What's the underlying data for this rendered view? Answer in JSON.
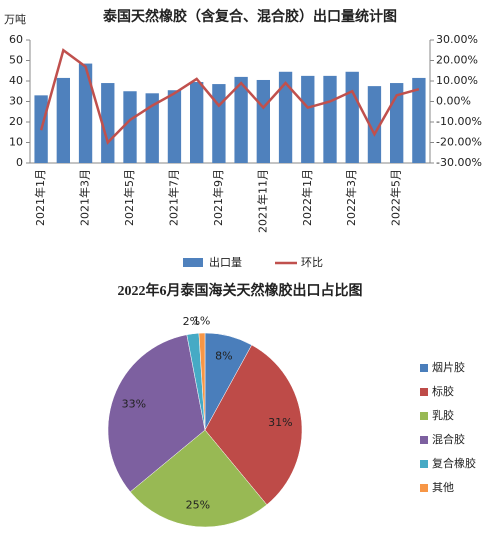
{
  "chart_data": [
    {
      "type": "bar",
      "title": "泰国天然橡胶（含复合、混合胶）出口量统计图",
      "y_label": "万吨",
      "categories": [
        "2021年1月",
        null,
        "2021年3月",
        null,
        "2021年5月",
        null,
        "2021年7月",
        null,
        "2021年9月",
        null,
        "2021年11月",
        null,
        "2022年1月",
        null,
        "2022年3月",
        null,
        "2022年5月",
        null
      ],
      "series": [
        {
          "name": "出口量",
          "type": "bar",
          "color": "#4f81bd",
          "values": [
            33,
            41.5,
            48.5,
            39,
            35,
            34,
            35.5,
            39.5,
            38.5,
            42,
            40.5,
            44.5,
            42.5,
            42.5,
            44.5,
            37.5,
            39,
            41.5
          ]
        },
        {
          "name": "环比",
          "type": "line",
          "axis": "y2",
          "color": "#c0504d",
          "values": [
            -14,
            25,
            17,
            -20,
            -9,
            -2,
            4,
            11,
            -2,
            9,
            -3,
            9,
            -3,
            0,
            5,
            -16,
            3,
            6
          ]
        }
      ],
      "ylim": [
        0,
        60
      ],
      "yticks": [
        0,
        10,
        20,
        30,
        40,
        50,
        60
      ],
      "y2lim": [
        -30,
        30
      ],
      "y2ticks": [
        {
          "value": -30,
          "label": "-30.00%"
        },
        {
          "value": -20,
          "label": "-20.00%"
        },
        {
          "value": -10,
          "label": "-10.00%"
        },
        {
          "value": 0,
          "label": "0.00%"
        },
        {
          "value": 10,
          "label": "10.00%"
        },
        {
          "value": 20,
          "label": "20.00%"
        },
        {
          "value": 30,
          "label": "30.00%"
        }
      ],
      "legend": "bottom"
    },
    {
      "type": "pie",
      "title": "2022年6月泰国海关天然橡胶出口占比图",
      "categories": [
        "烟片胶",
        "标胶",
        "乳胶",
        "混合胶",
        "复合橡胶",
        "其他"
      ],
      "values": [
        8,
        31,
        25,
        33,
        2,
        1
      ],
      "value_labels": [
        "8%",
        "31%",
        "25%",
        "33%",
        "2%",
        "1%"
      ],
      "colors": [
        "#4a7ebb",
        "#be4b48",
        "#98b954",
        "#7d60a0",
        "#46aac5",
        "#f79646"
      ],
      "legend": "right"
    }
  ]
}
